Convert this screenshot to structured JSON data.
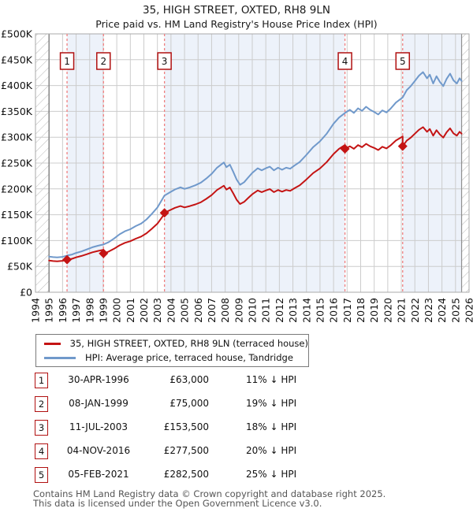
{
  "header": {
    "title": "35, HIGH STREET, OXTED, RH8 9LN",
    "subtitle": "Price paid vs. HM Land Registry's House Price Index (HPI)"
  },
  "chart_data": {
    "type": "line",
    "title": "35, HIGH STREET, OXTED, RH8 9LN — Price paid vs. HPI",
    "x_axis": {
      "years": [
        1994,
        1995,
        1996,
        1997,
        1998,
        1999,
        2000,
        2001,
        2002,
        2003,
        2004,
        2005,
        2006,
        2007,
        2008,
        2009,
        2010,
        2011,
        2012,
        2013,
        2014,
        2015,
        2016,
        2017,
        2018,
        2019,
        2020,
        2021,
        2022,
        2023,
        2024,
        2025,
        2026
      ],
      "range": [
        1994,
        2026
      ]
    },
    "y_axis": {
      "ticks": [
        "£0",
        "£50K",
        "£100K",
        "£150K",
        "£200K",
        "£250K",
        "£300K",
        "£350K",
        "£400K",
        "£450K",
        "£500K"
      ],
      "tick_values": [
        0,
        50,
        100,
        150,
        200,
        250,
        300,
        350,
        400,
        450,
        500
      ],
      "range_thousands_gbp": [
        0,
        500
      ],
      "grid": true
    },
    "data_start_year": 1995.0,
    "data_end_year": 2025.45,
    "shaded_periods": [
      [
        1996.33,
        1999.02
      ],
      [
        2003.52,
        2016.84
      ],
      [
        2021.1,
        2025.45
      ]
    ],
    "colors": {
      "price_line": "#c41414",
      "hpi_line": "#7099cb",
      "sale_vline": "#f08080",
      "band_fill": "#edf2fa",
      "grid": "#cccccc",
      "border": "#aaaaaa",
      "marker_box_border": "#b01010"
    },
    "legend_position": "bottom",
    "series": [
      {
        "name": "HPI: Average price, terraced house, Tandridge",
        "color": "#7099cb",
        "points_year_gbpk": [
          [
            1995.0,
            69
          ],
          [
            1995.3,
            68
          ],
          [
            1995.6,
            67.5
          ],
          [
            1996.0,
            68.5
          ],
          [
            1996.33,
            71
          ],
          [
            1996.7,
            73
          ],
          [
            1997.0,
            76
          ],
          [
            1997.4,
            79
          ],
          [
            1997.8,
            83
          ],
          [
            1998.2,
            87
          ],
          [
            1998.6,
            90
          ],
          [
            1999.02,
            92.5
          ],
          [
            1999.4,
            97
          ],
          [
            1999.8,
            104
          ],
          [
            2000.2,
            112
          ],
          [
            2000.6,
            118
          ],
          [
            2001.0,
            122
          ],
          [
            2001.4,
            128
          ],
          [
            2001.8,
            133
          ],
          [
            2002.2,
            141
          ],
          [
            2002.6,
            152
          ],
          [
            2003.0,
            164
          ],
          [
            2003.52,
            187
          ],
          [
            2003.9,
            193
          ],
          [
            2004.3,
            199
          ],
          [
            2004.7,
            203
          ],
          [
            2005.0,
            200
          ],
          [
            2005.4,
            203
          ],
          [
            2005.8,
            207
          ],
          [
            2006.2,
            212
          ],
          [
            2006.6,
            220
          ],
          [
            2007.0,
            229
          ],
          [
            2007.4,
            241
          ],
          [
            2007.9,
            251
          ],
          [
            2008.1,
            242
          ],
          [
            2008.35,
            247
          ],
          [
            2008.6,
            233
          ],
          [
            2008.85,
            218
          ],
          [
            2009.1,
            208
          ],
          [
            2009.4,
            213
          ],
          [
            2009.7,
            222
          ],
          [
            2010.0,
            231
          ],
          [
            2010.4,
            240
          ],
          [
            2010.7,
            236
          ],
          [
            2011.0,
            240
          ],
          [
            2011.3,
            243
          ],
          [
            2011.6,
            236
          ],
          [
            2011.9,
            241
          ],
          [
            2012.2,
            237
          ],
          [
            2012.5,
            241
          ],
          [
            2012.8,
            239
          ],
          [
            2013.1,
            245
          ],
          [
            2013.5,
            252
          ],
          [
            2014.0,
            266
          ],
          [
            2014.5,
            281
          ],
          [
            2015.0,
            292
          ],
          [
            2015.5,
            307
          ],
          [
            2016.0,
            326
          ],
          [
            2016.4,
            338
          ],
          [
            2016.84,
            347
          ],
          [
            2017.2,
            353
          ],
          [
            2017.5,
            347
          ],
          [
            2017.8,
            356
          ],
          [
            2018.1,
            351
          ],
          [
            2018.4,
            359
          ],
          [
            2018.7,
            353
          ],
          [
            2019.0,
            349
          ],
          [
            2019.3,
            344
          ],
          [
            2019.6,
            352
          ],
          [
            2019.9,
            348
          ],
          [
            2020.2,
            355
          ],
          [
            2020.6,
            367
          ],
          [
            2021.1,
            377
          ],
          [
            2021.4,
            391
          ],
          [
            2021.7,
            399
          ],
          [
            2022.0,
            409
          ],
          [
            2022.3,
            419
          ],
          [
            2022.6,
            426
          ],
          [
            2022.9,
            414
          ],
          [
            2023.1,
            421
          ],
          [
            2023.35,
            404
          ],
          [
            2023.6,
            418
          ],
          [
            2023.85,
            407
          ],
          [
            2024.1,
            399
          ],
          [
            2024.35,
            413
          ],
          [
            2024.6,
            423
          ],
          [
            2024.85,
            410
          ],
          [
            2025.1,
            404
          ],
          [
            2025.3,
            414
          ],
          [
            2025.45,
            409
          ]
        ]
      },
      {
        "name": "35, HIGH STREET, OXTED, RH8 9LN (terraced house)",
        "color": "#c41414",
        "points_year_gbpk": [
          [
            1995.0,
            61.3
          ],
          [
            1995.3,
            60.4
          ],
          [
            1995.6,
            59.9
          ],
          [
            1996.0,
            60.8
          ],
          [
            1996.33,
            63.0
          ],
          [
            1996.7,
            64.8
          ],
          [
            1997.0,
            67.5
          ],
          [
            1997.4,
            70.2
          ],
          [
            1997.8,
            73.7
          ],
          [
            1998.2,
            77.3
          ],
          [
            1998.6,
            79.9
          ],
          [
            1999.02,
            82.1
          ],
          [
            1999.02,
            75.0
          ],
          [
            1999.4,
            78.6
          ],
          [
            1999.8,
            84.2
          ],
          [
            2000.2,
            90.7
          ],
          [
            2000.6,
            95.6
          ],
          [
            2001.0,
            98.8
          ],
          [
            2001.4,
            103.7
          ],
          [
            2001.8,
            107.7
          ],
          [
            2002.2,
            114.2
          ],
          [
            2002.6,
            123.1
          ],
          [
            2003.0,
            132.8
          ],
          [
            2003.52,
            151.5
          ],
          [
            2003.52,
            153.5
          ],
          [
            2003.9,
            158.5
          ],
          [
            2004.3,
            163.4
          ],
          [
            2004.7,
            166.7
          ],
          [
            2005.0,
            164.2
          ],
          [
            2005.4,
            166.7
          ],
          [
            2005.8,
            170.0
          ],
          [
            2006.2,
            174.1
          ],
          [
            2006.6,
            180.6
          ],
          [
            2007.0,
            188.0
          ],
          [
            2007.4,
            197.9
          ],
          [
            2007.9,
            206.1
          ],
          [
            2008.1,
            198.7
          ],
          [
            2008.35,
            202.8
          ],
          [
            2008.6,
            191.3
          ],
          [
            2008.85,
            179.0
          ],
          [
            2009.1,
            170.8
          ],
          [
            2009.4,
            174.9
          ],
          [
            2009.7,
            182.3
          ],
          [
            2010.0,
            189.7
          ],
          [
            2010.4,
            197.0
          ],
          [
            2010.7,
            193.8
          ],
          [
            2011.0,
            197.0
          ],
          [
            2011.3,
            199.5
          ],
          [
            2011.6,
            193.8
          ],
          [
            2011.9,
            197.9
          ],
          [
            2012.2,
            194.6
          ],
          [
            2012.5,
            197.9
          ],
          [
            2012.8,
            196.2
          ],
          [
            2013.1,
            201.1
          ],
          [
            2013.5,
            206.9
          ],
          [
            2014.0,
            218.4
          ],
          [
            2014.5,
            230.7
          ],
          [
            2015.0,
            239.7
          ],
          [
            2015.5,
            252.0
          ],
          [
            2016.0,
            267.6
          ],
          [
            2016.4,
            277.5
          ],
          [
            2016.84,
            284.9
          ],
          [
            2016.84,
            277.5
          ],
          [
            2017.2,
            282.4
          ],
          [
            2017.5,
            277.6
          ],
          [
            2017.8,
            284.8
          ],
          [
            2018.1,
            280.8
          ],
          [
            2018.4,
            287.2
          ],
          [
            2018.7,
            282.4
          ],
          [
            2019.0,
            279.2
          ],
          [
            2019.3,
            275.2
          ],
          [
            2019.6,
            281.6
          ],
          [
            2019.9,
            278.4
          ],
          [
            2020.2,
            284.0
          ],
          [
            2020.6,
            293.6
          ],
          [
            2021.1,
            301.6
          ],
          [
            2021.1,
            282.5
          ],
          [
            2021.4,
            293.3
          ],
          [
            2021.7,
            299.3
          ],
          [
            2022.0,
            306.8
          ],
          [
            2022.3,
            314.3
          ],
          [
            2022.6,
            319.5
          ],
          [
            2022.9,
            310.5
          ],
          [
            2023.1,
            315.8
          ],
          [
            2023.35,
            303.0
          ],
          [
            2023.6,
            313.5
          ],
          [
            2023.85,
            305.3
          ],
          [
            2024.1,
            299.3
          ],
          [
            2024.35,
            309.8
          ],
          [
            2024.6,
            317.3
          ],
          [
            2024.85,
            307.5
          ],
          [
            2025.1,
            303.0
          ],
          [
            2025.3,
            310.5
          ],
          [
            2025.45,
            306.8
          ]
        ]
      }
    ],
    "sales": [
      {
        "n": "1",
        "year": 1996.33,
        "price_gbpk": 63.0
      },
      {
        "n": "2",
        "year": 1999.02,
        "price_gbpk": 75.0
      },
      {
        "n": "3",
        "year": 2003.52,
        "price_gbpk": 153.5
      },
      {
        "n": "4",
        "year": 2016.84,
        "price_gbpk": 277.5
      },
      {
        "n": "5",
        "year": 2021.1,
        "price_gbpk": 282.5
      }
    ]
  },
  "legend": {
    "items": [
      {
        "label": "35, HIGH STREET, OXTED, RH8 9LN (terraced house)",
        "color": "#c41414"
      },
      {
        "label": "HPI: Average price, terraced house, Tandridge",
        "color": "#7099cb"
      }
    ]
  },
  "table": {
    "rows": [
      {
        "num": "1",
        "date": "30-APR-1996",
        "price": "£63,000",
        "hpi_diff": "11% ↓ HPI"
      },
      {
        "num": "2",
        "date": "08-JAN-1999",
        "price": "£75,000",
        "hpi_diff": "19% ↓ HPI"
      },
      {
        "num": "3",
        "date": "11-JUL-2003",
        "price": "£153,500",
        "hpi_diff": "18% ↓ HPI"
      },
      {
        "num": "4",
        "date": "04-NOV-2016",
        "price": "£277,500",
        "hpi_diff": "20% ↓ HPI"
      },
      {
        "num": "5",
        "date": "05-FEB-2021",
        "price": "£282,500",
        "hpi_diff": "25% ↓ HPI"
      }
    ]
  },
  "footer": {
    "line1": "Contains HM Land Registry data © Crown copyright and database right 2025.",
    "line2": "This data is licensed under the Open Government Licence v3.0."
  }
}
